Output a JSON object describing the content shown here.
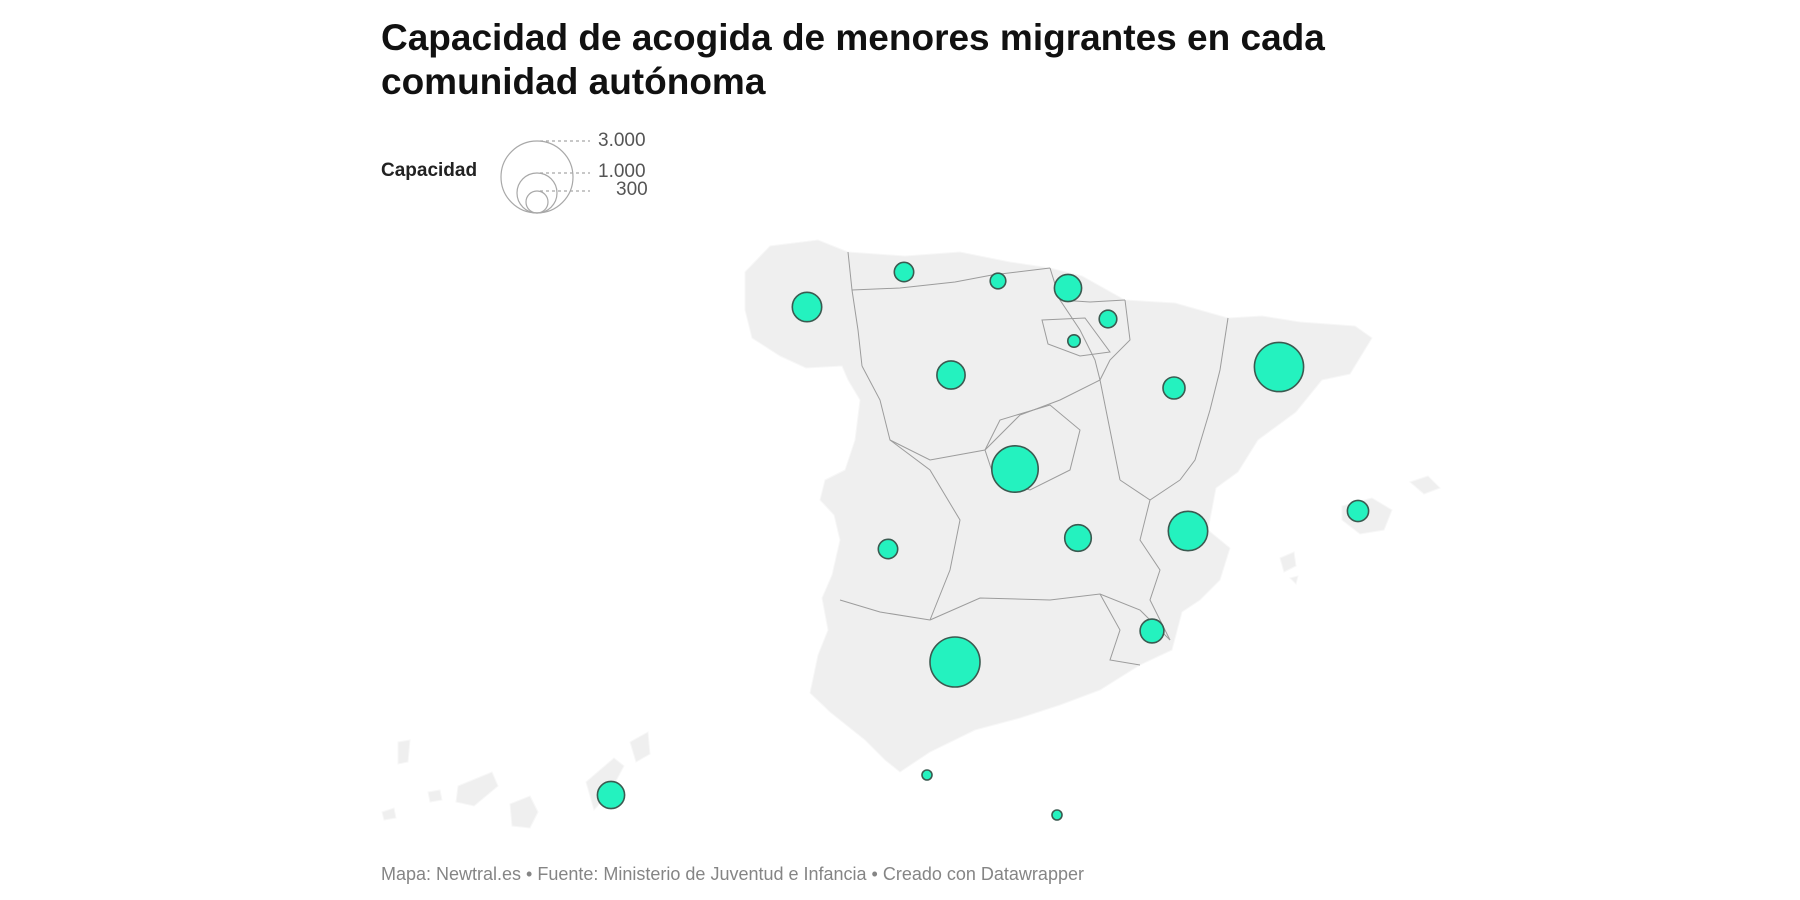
{
  "title": "Capacidad de acogida de menores migrantes en cada comunidad autónoma",
  "legend": {
    "label": "Capacidad",
    "values": [
      "3.000",
      "1.000",
      "300"
    ]
  },
  "footer": {
    "text": "Mapa: Newtral.es • Fuente: Ministerio de Juventud e Infancia  • Creado con Datawrapper"
  },
  "colors": {
    "land": "#efefef",
    "border": "#999999",
    "bubble": "#24f2bf",
    "bubble_stroke": "#3b5a50"
  },
  "map_data": {
    "type": "proportional-symbol",
    "metric": "Capacidad",
    "legend_reference": [
      3000,
      1000,
      300
    ],
    "symbols": [
      {
        "id": "galicia",
        "value": 500
      },
      {
        "id": "asturias",
        "value": 220
      },
      {
        "id": "cantabria",
        "value": 140
      },
      {
        "id": "pais-vasco",
        "value": 430
      },
      {
        "id": "navarra",
        "value": 180
      },
      {
        "id": "la-rioja",
        "value": 90
      },
      {
        "id": "castilla-y-leon",
        "value": 460
      },
      {
        "id": "aragon",
        "value": 280
      },
      {
        "id": "cataluna",
        "value": 1400
      },
      {
        "id": "madrid",
        "value": 1250
      },
      {
        "id": "extremadura",
        "value": 220
      },
      {
        "id": "castilla-la-mancha",
        "value": 410
      },
      {
        "id": "comunidad-valenciana",
        "value": 900
      },
      {
        "id": "baleares",
        "value": 260
      },
      {
        "id": "murcia",
        "value": 330
      },
      {
        "id": "andalucia",
        "value": 1450
      },
      {
        "id": "canarias",
        "value": 430
      },
      {
        "id": "ceuta",
        "value": 25
      },
      {
        "id": "melilla",
        "value": 25
      }
    ]
  }
}
